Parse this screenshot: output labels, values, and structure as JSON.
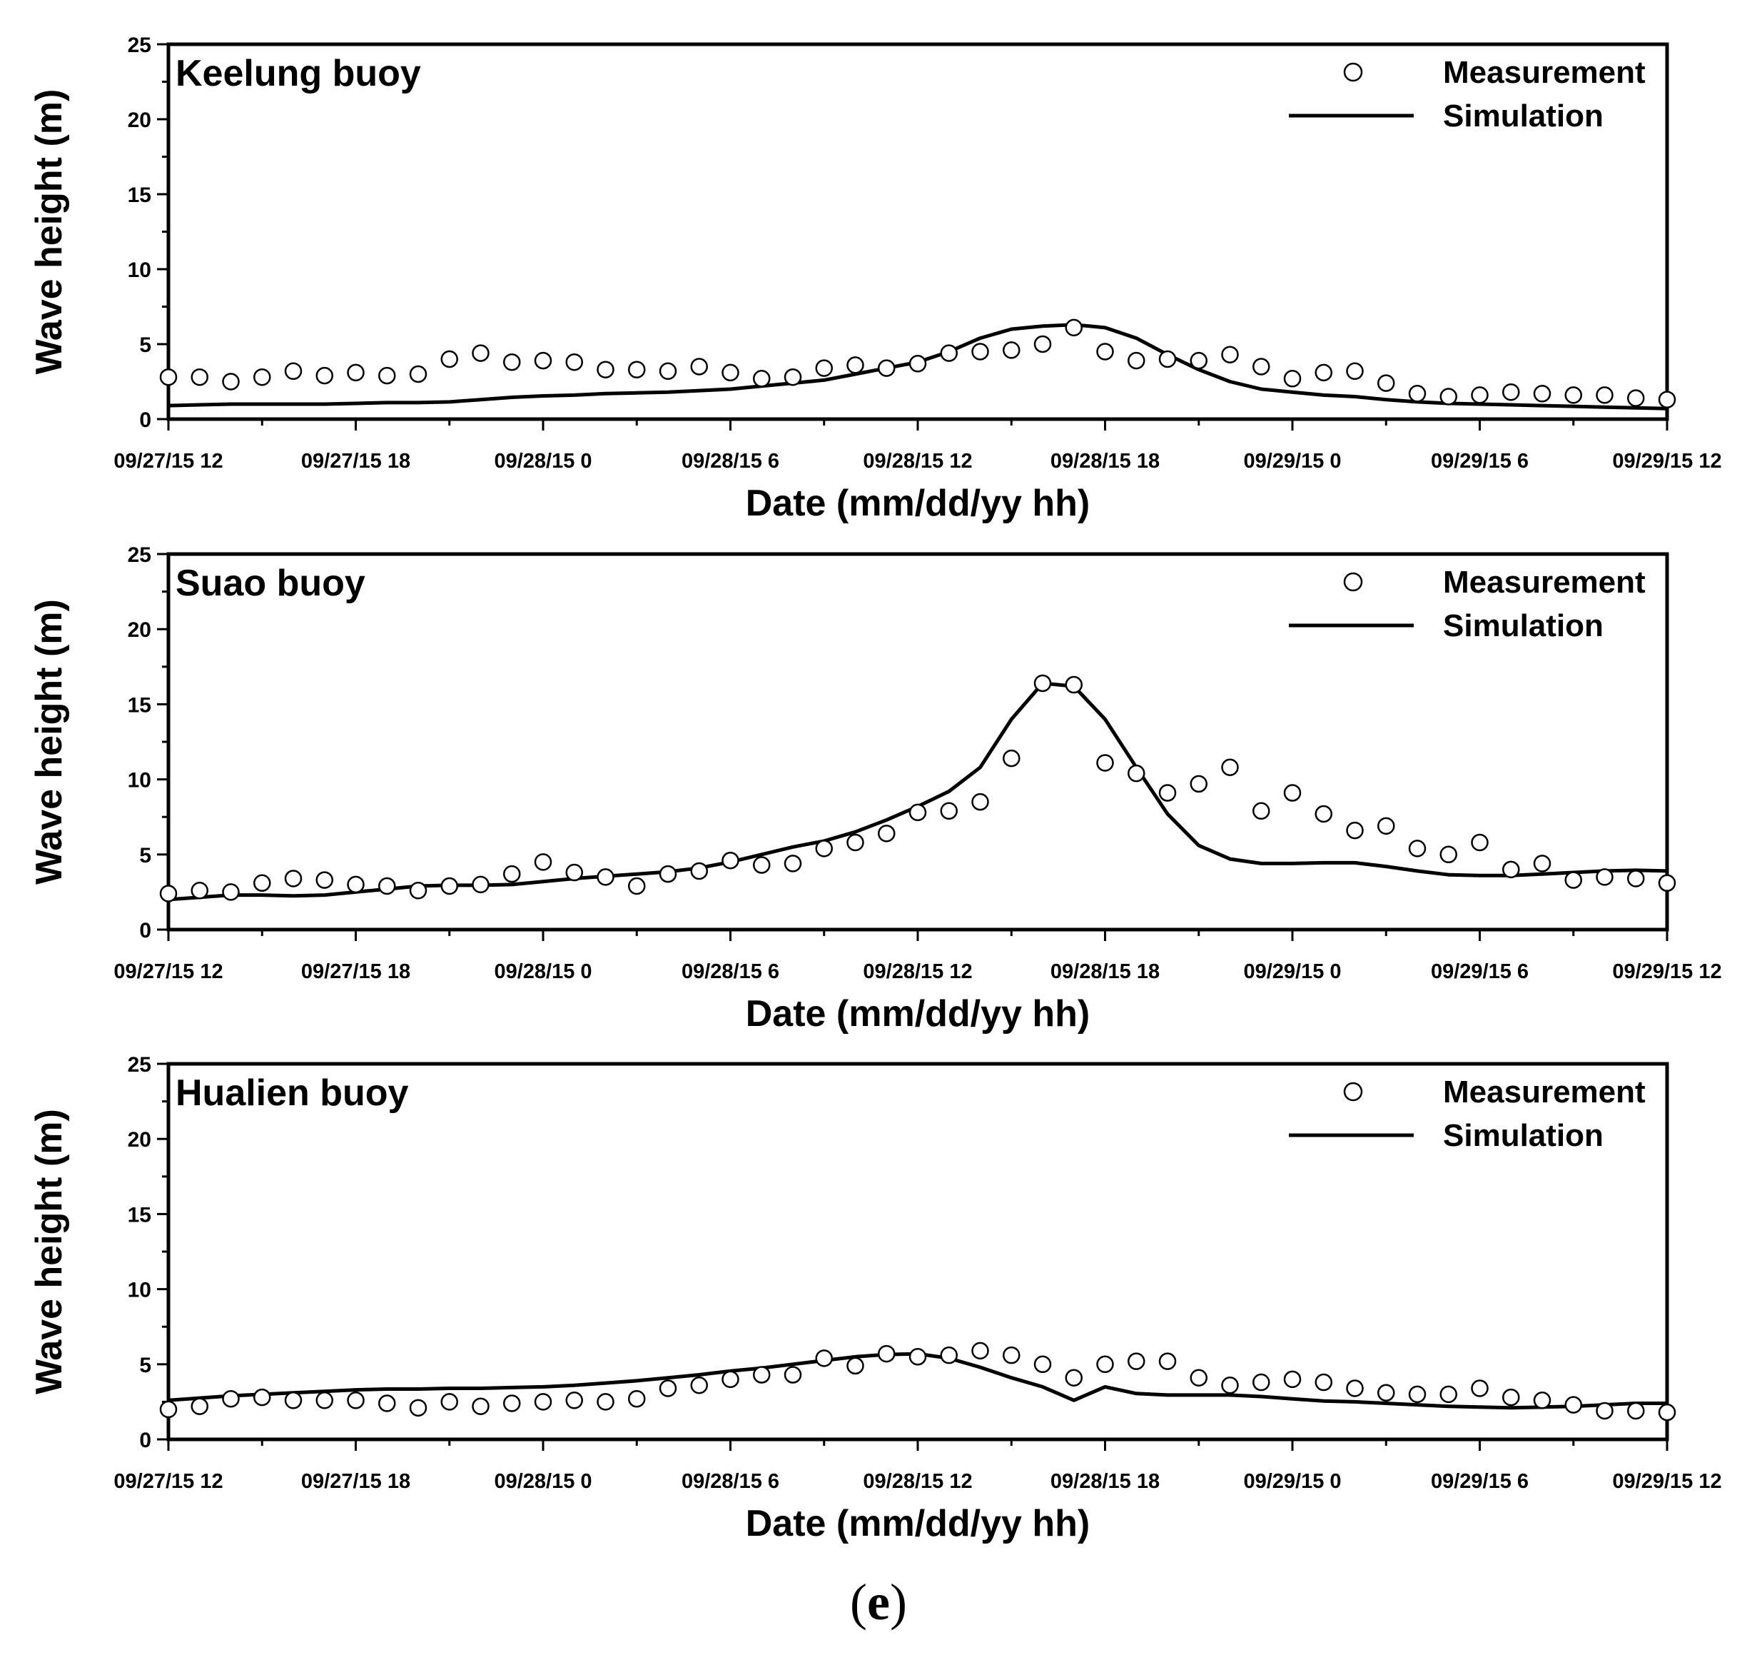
{
  "caption": {
    "open": "(",
    "letter": "e",
    "close": ")"
  },
  "styles": {
    "line_color": "#000000",
    "marker_fill": "#ffffff",
    "marker_stroke": "#000000"
  },
  "chart_data": [
    {
      "type": "line",
      "title": "Keelung buoy",
      "xlabel": "Date (mm/dd/yy hh)",
      "ylabel": "Wave height (m)",
      "ylim": [
        0,
        25
      ],
      "yticks": [
        0,
        5,
        10,
        15,
        20,
        25
      ],
      "xlim": [
        "2015-09-27 12:00",
        "2015-09-29 12:00"
      ],
      "xticks": [
        {
          "date": "2015-09-27 12:00",
          "label": "09/27/15 12"
        },
        {
          "date": "2015-09-27 18:00",
          "label": "09/27/15 18"
        },
        {
          "date": "2015-09-28 00:00",
          "label": "09/28/15 0"
        },
        {
          "date": "2015-09-28 06:00",
          "label": "09/28/15 6"
        },
        {
          "date": "2015-09-28 12:00",
          "label": "09/28/15 12"
        },
        {
          "date": "2015-09-28 18:00",
          "label": "09/28/15 18"
        },
        {
          "date": "2015-09-29 00:00",
          "label": "09/29/15 0"
        },
        {
          "date": "2015-09-29 06:00",
          "label": "09/29/15 6"
        },
        {
          "date": "2015-09-29 12:00",
          "label": "09/29/15 12"
        }
      ],
      "legend_position": "top-right",
      "series": [
        {
          "name": "Measurement",
          "style": "markers",
          "x_start": "2015-09-27 12:00",
          "x_step_hours": 1,
          "values": [
            2.8,
            2.8,
            2.5,
            2.8,
            3.2,
            2.9,
            3.1,
            2.9,
            3.0,
            4.0,
            4.4,
            3.8,
            3.9,
            3.8,
            3.3,
            3.3,
            3.2,
            3.5,
            3.1,
            2.7,
            2.8,
            3.4,
            3.6,
            3.4,
            3.7,
            4.4,
            4.5,
            4.6,
            5.0,
            6.1,
            4.5,
            3.9,
            4.0,
            3.9,
            4.3,
            3.5,
            2.7,
            3.1,
            3.2,
            2.4,
            1.7,
            1.5,
            1.6,
            1.8,
            1.7,
            1.6,
            1.6,
            1.4,
            1.3
          ]
        },
        {
          "name": "Simulation",
          "style": "line",
          "x_start": "2015-09-27 12:00",
          "x_step_hours": 1,
          "values": [
            0.9,
            0.95,
            1.0,
            1.0,
            1.0,
            1.0,
            1.05,
            1.1,
            1.1,
            1.15,
            1.3,
            1.45,
            1.55,
            1.6,
            1.7,
            1.75,
            1.8,
            1.9,
            2.0,
            2.2,
            2.4,
            2.6,
            3.0,
            3.4,
            3.8,
            4.5,
            5.4,
            6.0,
            6.2,
            6.3,
            6.1,
            5.4,
            4.3,
            3.3,
            2.5,
            2.0,
            1.8,
            1.6,
            1.5,
            1.3,
            1.15,
            1.05,
            1.0,
            0.95,
            0.9,
            0.85,
            0.8,
            0.75,
            0.7
          ]
        }
      ]
    },
    {
      "type": "line",
      "title": "Suao buoy",
      "xlabel": "Date (mm/dd/yy hh)",
      "ylabel": "Wave height (m)",
      "ylim": [
        0,
        25
      ],
      "yticks": [
        0,
        5,
        10,
        15,
        20,
        25
      ],
      "xlim": [
        "2015-09-27 12:00",
        "2015-09-29 12:00"
      ],
      "xticks": [
        {
          "date": "2015-09-27 12:00",
          "label": "09/27/15 12"
        },
        {
          "date": "2015-09-27 18:00",
          "label": "09/27/15 18"
        },
        {
          "date": "2015-09-28 00:00",
          "label": "09/28/15 0"
        },
        {
          "date": "2015-09-28 06:00",
          "label": "09/28/15 6"
        },
        {
          "date": "2015-09-28 12:00",
          "label": "09/28/15 12"
        },
        {
          "date": "2015-09-28 18:00",
          "label": "09/28/15 18"
        },
        {
          "date": "2015-09-29 00:00",
          "label": "09/29/15 0"
        },
        {
          "date": "2015-09-29 06:00",
          "label": "09/29/15 6"
        },
        {
          "date": "2015-09-29 12:00",
          "label": "09/29/15 12"
        }
      ],
      "legend_position": "top-right",
      "series": [
        {
          "name": "Measurement",
          "style": "markers",
          "x_start": "2015-09-27 12:00",
          "x_step_hours": 1,
          "values": [
            2.4,
            2.6,
            2.5,
            3.1,
            3.4,
            3.3,
            3.0,
            2.9,
            2.6,
            2.9,
            3.0,
            3.7,
            4.5,
            3.8,
            3.5,
            2.9,
            3.7,
            3.9,
            4.6,
            4.3,
            4.4,
            5.4,
            5.8,
            6.4,
            7.8,
            7.9,
            8.5,
            11.4,
            16.4,
            16.3,
            11.1,
            10.4,
            9.1,
            9.7,
            10.8,
            7.9,
            9.1,
            7.7,
            6.6,
            6.9,
            5.4,
            5.0,
            5.8,
            4.0,
            4.4,
            3.3,
            3.5,
            3.4,
            3.1
          ]
        },
        {
          "name": "Simulation",
          "style": "line",
          "x_start": "2015-09-27 12:00",
          "x_step_hours": 1,
          "values": [
            2.0,
            2.15,
            2.3,
            2.3,
            2.25,
            2.3,
            2.5,
            2.7,
            2.9,
            2.95,
            2.95,
            3.0,
            3.2,
            3.4,
            3.55,
            3.7,
            3.85,
            4.1,
            4.5,
            5.0,
            5.5,
            5.9,
            6.5,
            7.3,
            8.2,
            9.2,
            10.8,
            14.0,
            16.4,
            16.2,
            14.0,
            10.8,
            7.7,
            5.6,
            4.7,
            4.4,
            4.4,
            4.45,
            4.45,
            4.2,
            3.9,
            3.65,
            3.6,
            3.6,
            3.7,
            3.8,
            3.9,
            3.95,
            3.9
          ]
        }
      ]
    },
    {
      "type": "line",
      "title": "Hualien buoy",
      "xlabel": "Date (mm/dd/yy hh)",
      "ylabel": "Wave height (m)",
      "ylim": [
        0,
        25
      ],
      "yticks": [
        0,
        5,
        10,
        15,
        20,
        25
      ],
      "xlim": [
        "2015-09-27 12:00",
        "2015-09-29 12:00"
      ],
      "xticks": [
        {
          "date": "2015-09-27 12:00",
          "label": "09/27/15 12"
        },
        {
          "date": "2015-09-27 18:00",
          "label": "09/27/15 18"
        },
        {
          "date": "2015-09-28 00:00",
          "label": "09/28/15 0"
        },
        {
          "date": "2015-09-28 06:00",
          "label": "09/28/15 6"
        },
        {
          "date": "2015-09-28 12:00",
          "label": "09/28/15 12"
        },
        {
          "date": "2015-09-28 18:00",
          "label": "09/28/15 18"
        },
        {
          "date": "2015-09-29 00:00",
          "label": "09/29/15 0"
        },
        {
          "date": "2015-09-29 06:00",
          "label": "09/29/15 6"
        },
        {
          "date": "2015-09-29 12:00",
          "label": "09/29/15 12"
        }
      ],
      "legend_position": "top-right",
      "series": [
        {
          "name": "Measurement",
          "style": "markers",
          "x_start": "2015-09-27 12:00",
          "x_step_hours": 1,
          "values": [
            2.0,
            2.2,
            2.7,
            2.8,
            2.6,
            2.6,
            2.6,
            2.4,
            2.1,
            2.5,
            2.2,
            2.4,
            2.5,
            2.6,
            2.5,
            2.7,
            3.4,
            3.6,
            4.0,
            4.3,
            4.3,
            5.4,
            4.9,
            5.7,
            5.5,
            5.6,
            5.9,
            5.6,
            5.0,
            4.1,
            5.0,
            5.2,
            5.2,
            4.1,
            3.6,
            3.8,
            4.0,
            3.8,
            3.4,
            3.1,
            3.0,
            3.0,
            3.4,
            2.8,
            2.6,
            2.3,
            1.9,
            1.9,
            1.8
          ]
        },
        {
          "name": "Simulation",
          "style": "line",
          "x_start": "2015-09-27 12:00",
          "x_step_hours": 1,
          "values": [
            2.6,
            2.75,
            2.9,
            3.0,
            3.1,
            3.2,
            3.3,
            3.35,
            3.35,
            3.4,
            3.4,
            3.45,
            3.5,
            3.6,
            3.75,
            3.9,
            4.1,
            4.3,
            4.55,
            4.75,
            5.0,
            5.25,
            5.5,
            5.65,
            5.7,
            5.4,
            4.8,
            4.1,
            3.5,
            2.6,
            3.5,
            3.05,
            2.95,
            2.95,
            2.95,
            2.85,
            2.7,
            2.55,
            2.5,
            2.4,
            2.3,
            2.2,
            2.15,
            2.1,
            2.15,
            2.2,
            2.3,
            2.4,
            2.4
          ]
        }
      ]
    }
  ]
}
